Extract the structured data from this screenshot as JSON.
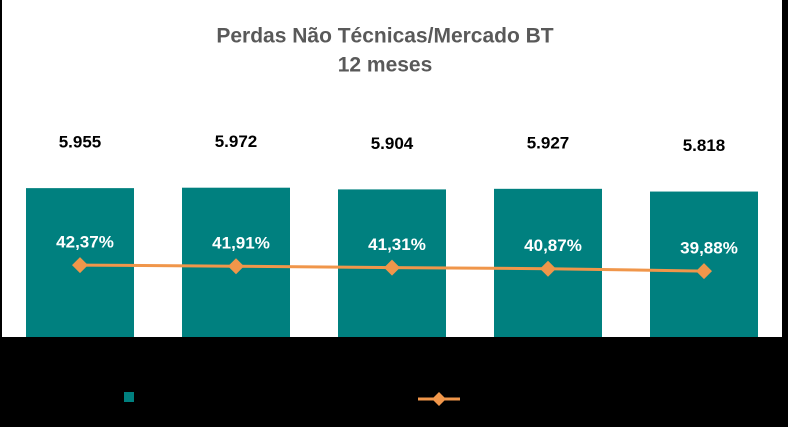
{
  "chart_data": {
    "type": "combo",
    "title": "Perdas Não Técnicas/Mercado BT",
    "subtitle": "12 meses",
    "categories": [
      null,
      null,
      null,
      null,
      null
    ],
    "ylim": [
      0,
      13000
    ],
    "y2lim": [
      12.5,
      147.5
    ],
    "series": [
      {
        "type": "bar",
        "color": "#00807f",
        "values": [
          5955,
          5972,
          5904,
          5927,
          5818
        ],
        "value_labels": [
          "5.955",
          "5.972",
          "5.904",
          "5.927",
          "5.818"
        ]
      },
      {
        "type": "line",
        "axis": "y2",
        "color": "#f0964a",
        "values": [
          42.37,
          41.91,
          41.31,
          40.87,
          39.88
        ],
        "value_labels": [
          "42,37%",
          "41,91%",
          "41,31%",
          "40,87%",
          "39,88%"
        ]
      }
    ]
  }
}
